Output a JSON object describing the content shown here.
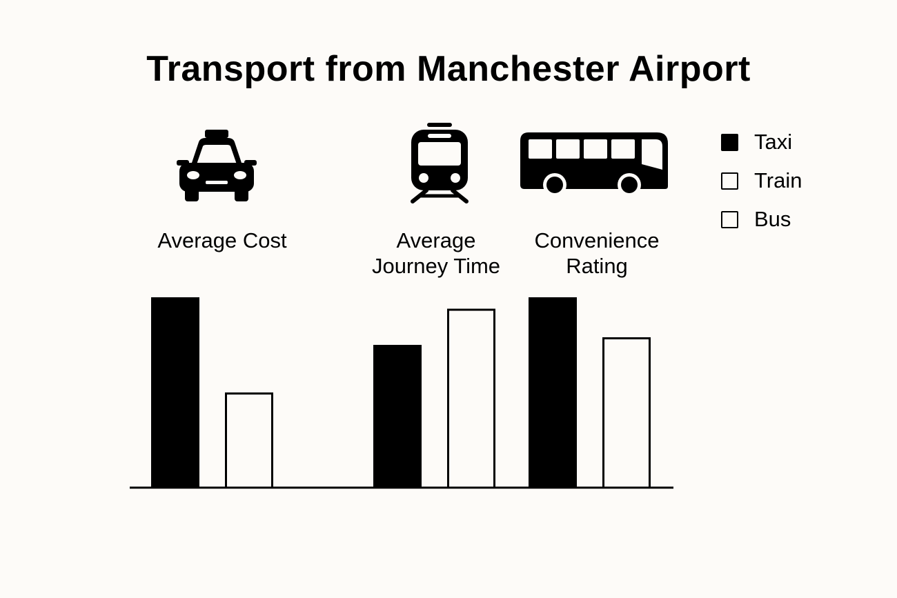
{
  "chart_data": {
    "type": "bar",
    "title": "Transport from Manchester Airport",
    "categories": [
      "Average Cost",
      "Average\nJourney Time",
      "Convenience\nRating"
    ],
    "category_icons": [
      "taxi-icon",
      "train-icon",
      "bus-icon"
    ],
    "series": [
      {
        "name": "Taxi",
        "fill": "#000000",
        "stroke": "#000000",
        "values": [
          100,
          75,
          100
        ]
      },
      {
        "name": "Train",
        "fill": "#fdfbf8",
        "stroke": "#000000",
        "values": [
          50,
          94,
          79
        ]
      },
      {
        "name": "Bus",
        "fill": "#fdfbf8",
        "stroke": "#000000",
        "values": [
          null,
          null,
          null
        ]
      }
    ],
    "ylim": [
      0,
      100
    ],
    "xlabel": "",
    "ylabel": "",
    "grid": false,
    "legend_position": "top-right"
  }
}
